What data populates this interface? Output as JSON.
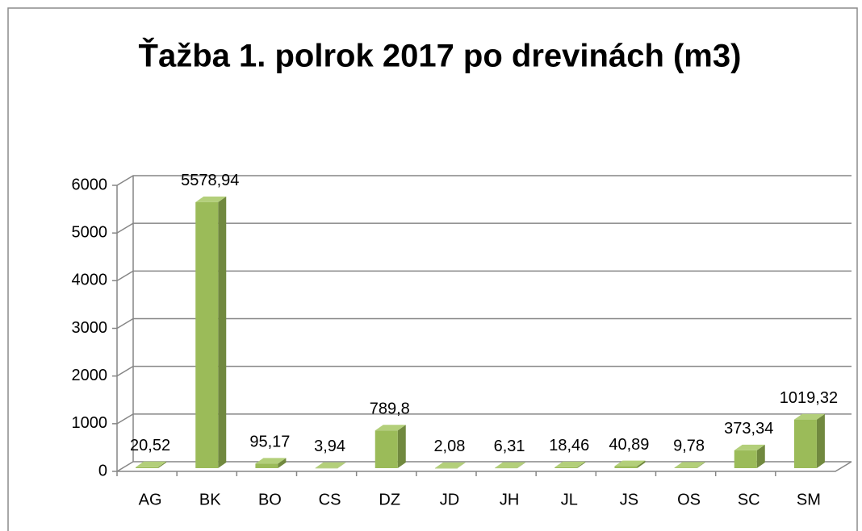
{
  "chart_data": {
    "type": "bar3d",
    "title": "Ťažba 1. polrok 2017 po drevinách (m3)",
    "categories": [
      "AG",
      "BK",
      "BO",
      "CS",
      "DZ",
      "JD",
      "JH",
      "JL",
      "JS",
      "OS",
      "SC",
      "SM"
    ],
    "values": [
      20.52,
      5578.94,
      95.17,
      3.94,
      789.8,
      2.08,
      6.31,
      18.46,
      40.89,
      9.78,
      373.34,
      1019.32
    ],
    "value_labels": [
      "20,52",
      "5578,94",
      "95,17",
      "3,94",
      "789,8",
      "2,08",
      "6,31",
      "18,46",
      "40,89",
      "9,78",
      "373,34",
      "1019,32"
    ],
    "color": "#9bbb59",
    "ylim": [
      0,
      6000
    ],
    "yticks": [
      0,
      1000,
      2000,
      3000,
      4000,
      5000,
      6000
    ],
    "grid": true
  }
}
